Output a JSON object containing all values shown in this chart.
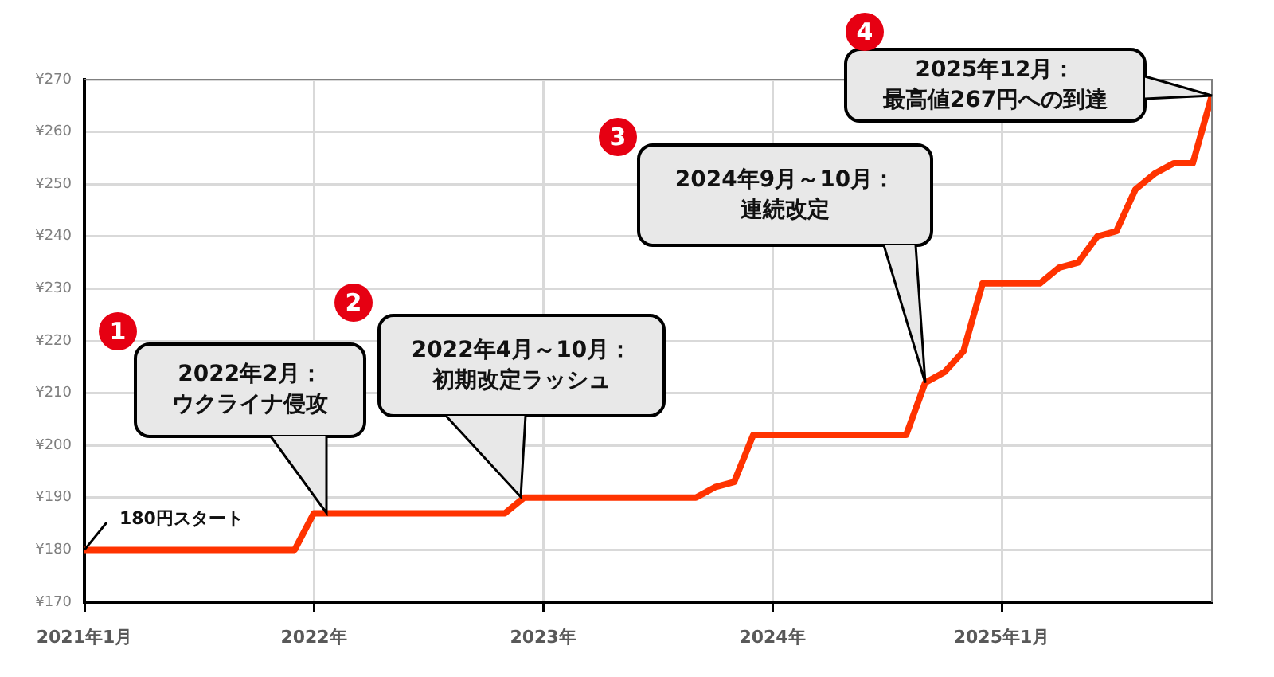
{
  "chart_data": {
    "type": "line",
    "x": [
      "2021-01",
      "2021-12",
      "2022-01",
      "2022-11",
      "2022-12",
      "2023-09",
      "2023-10",
      "2023-11",
      "2023-12",
      "2024-08",
      "2024-09",
      "2024-10",
      "2024-11",
      "2024-12",
      "2025-01",
      "2025-02",
      "2025-03",
      "2025-04",
      "2025-05",
      "2025-06",
      "2025-07",
      "2025-08",
      "2025-09",
      "2025-10",
      "2025-11",
      "2025-12"
    ],
    "values": [
      180,
      180,
      187,
      187,
      190,
      190,
      192,
      193,
      202,
      202,
      212,
      214,
      218,
      231,
      231,
      231,
      231,
      234,
      235,
      240,
      241,
      249,
      252,
      254,
      254,
      267
    ],
    "color": "#ff3300",
    "xlim": [
      "2021-01",
      "2025-12"
    ],
    "xticks": [
      {
        "value": "2021-01",
        "label": "2021年1月"
      },
      {
        "value": "2022-01",
        "label": "2022年"
      },
      {
        "value": "2023-01",
        "label": "2023年"
      },
      {
        "value": "2024-01",
        "label": "2024年"
      },
      {
        "value": "2025-01",
        "label": "2025年1月"
      }
    ],
    "ylim": [
      170,
      270
    ],
    "yticks": [
      {
        "value": 170,
        "label": "¥170"
      },
      {
        "value": 180,
        "label": "¥180"
      },
      {
        "value": 190,
        "label": "¥190"
      },
      {
        "value": 200,
        "label": "¥200"
      },
      {
        "value": 210,
        "label": "¥210"
      },
      {
        "value": 220,
        "label": "¥220"
      },
      {
        "value": 230,
        "label": "¥230"
      },
      {
        "value": 240,
        "label": "¥240"
      },
      {
        "value": 250,
        "label": "¥250"
      },
      {
        "value": 260,
        "label": "¥260"
      },
      {
        "value": 270,
        "label": "¥270"
      }
    ],
    "grid": true,
    "annotations": [
      "2022年2月：ウクライナ侵攻",
      "2022年4月～10月：初期改定ラッシュ",
      {
        "text": "2024年9月～10月：連続改定",
        "x": "2024-09",
        "y": 212
      },
      "2025年12月：最高値267円への到達",
      {
        "text": "180円スタート",
        "x": "2021-01",
        "y": 180
      },
      "1",
      "2",
      "3",
      "4"
    ]
  }
}
